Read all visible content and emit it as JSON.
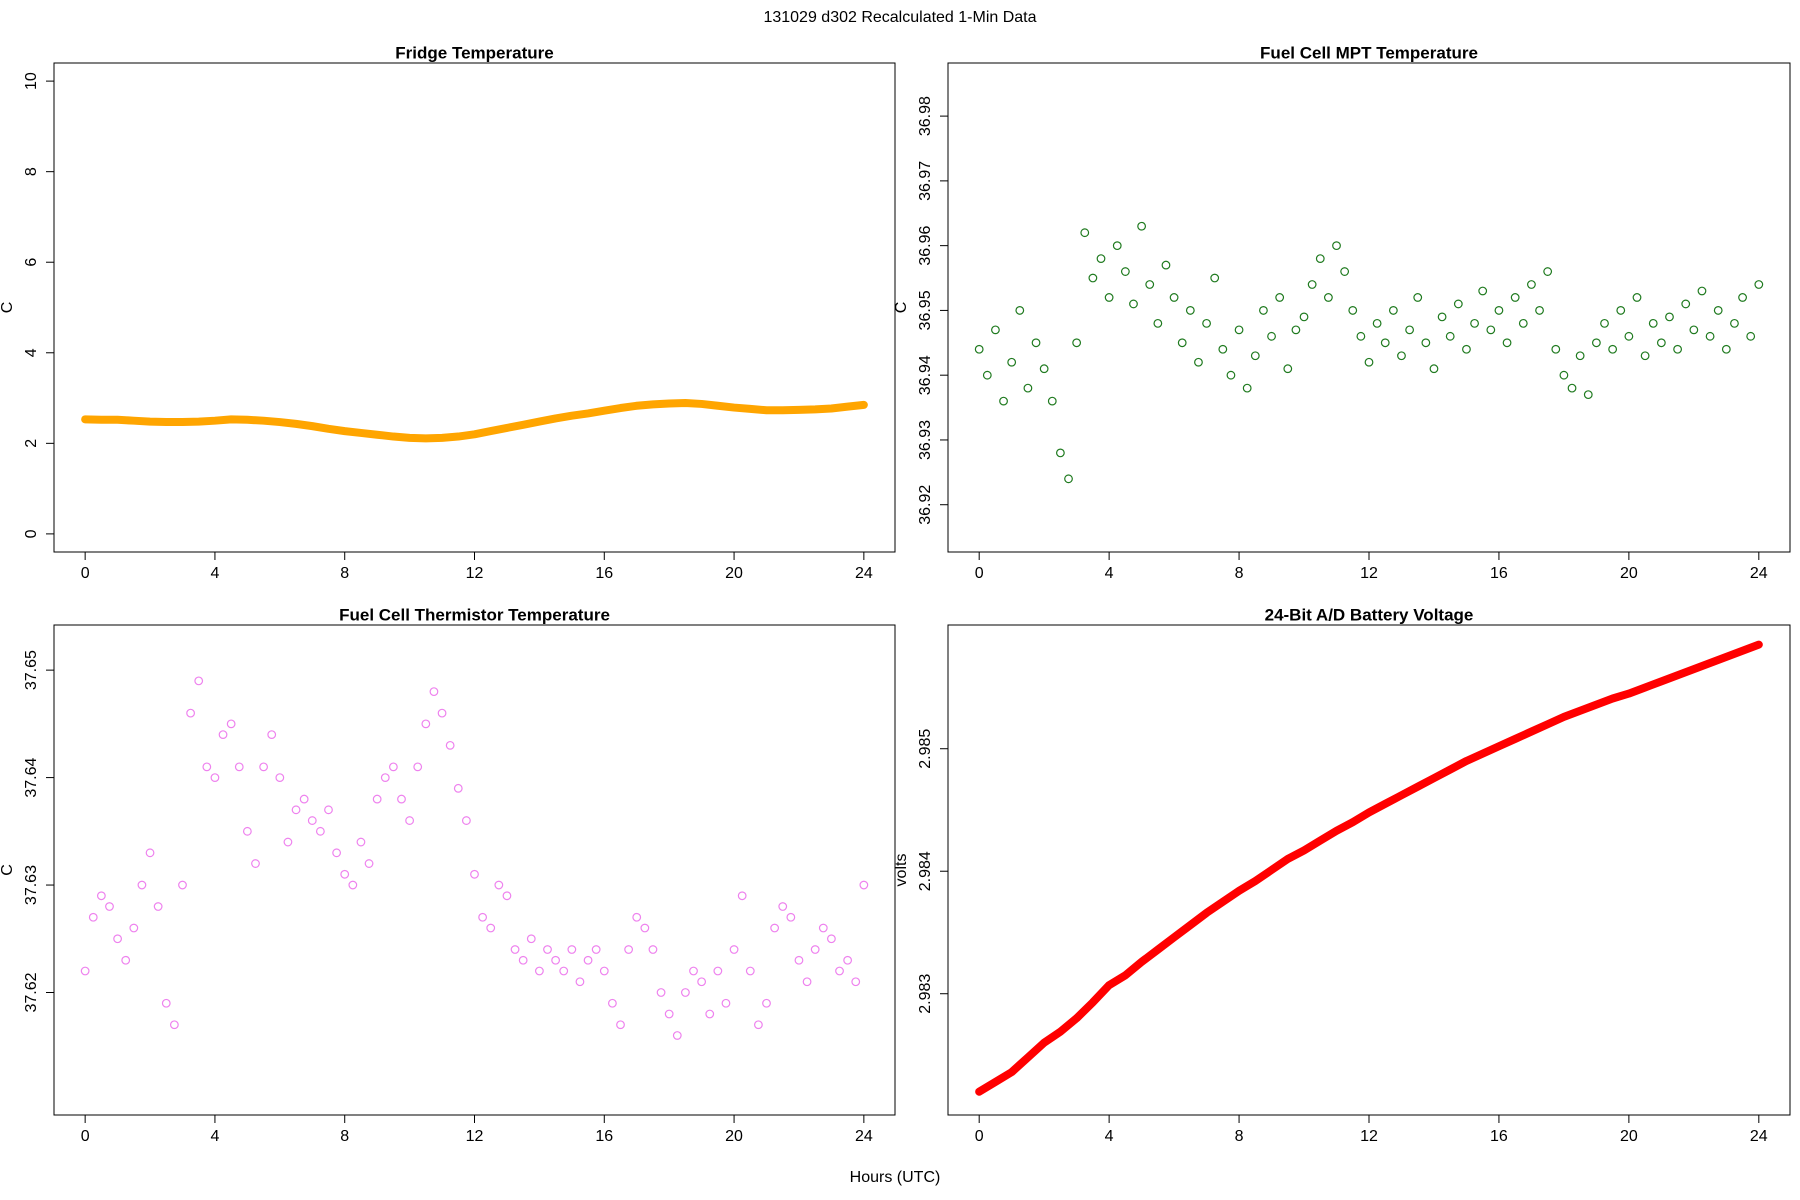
{
  "title": "131029   d302   Recalculated 1-Min Data",
  "xlabel": "Hours (UTC)",
  "chart_data": [
    {
      "type": "line",
      "title": "Fridge Temperature",
      "ylabel": "C",
      "color": "#FFA500",
      "x": [
        0,
        0.5,
        1,
        1.5,
        2,
        2.5,
        3,
        3.5,
        4,
        4.5,
        5,
        5.5,
        6,
        6.5,
        7,
        7.5,
        8,
        8.5,
        9,
        9.5,
        10,
        10.5,
        11,
        11.5,
        12,
        12.5,
        13,
        13.5,
        14,
        14.5,
        15,
        15.5,
        16,
        16.5,
        17,
        17.5,
        18,
        18.5,
        19,
        19.5,
        20,
        20.5,
        21,
        21.5,
        22,
        22.5,
        23,
        23.5,
        24
      ],
      "values": [
        2.53,
        2.52,
        2.52,
        2.5,
        2.48,
        2.47,
        2.47,
        2.48,
        2.5,
        2.53,
        2.52,
        2.5,
        2.47,
        2.43,
        2.38,
        2.32,
        2.27,
        2.23,
        2.19,
        2.15,
        2.12,
        2.11,
        2.12,
        2.15,
        2.2,
        2.27,
        2.34,
        2.41,
        2.48,
        2.55,
        2.61,
        2.66,
        2.72,
        2.78,
        2.83,
        2.86,
        2.88,
        2.89,
        2.87,
        2.83,
        2.79,
        2.76,
        2.73,
        2.73,
        2.74,
        2.75,
        2.77,
        2.81,
        2.85
      ],
      "xlim": [
        -0.96,
        24.96
      ],
      "xticks": [
        0,
        4,
        8,
        12,
        16,
        20,
        24
      ],
      "ylim": [
        -0.4,
        10.4
      ],
      "yticks": [
        0,
        2,
        4,
        6,
        8,
        10
      ]
    },
    {
      "type": "scatter",
      "title": "Fuel Cell MPT Temperature",
      "ylabel": "C",
      "color": "#1f7a1f",
      "x": [
        0,
        0.25,
        0.5,
        0.75,
        1,
        1.25,
        1.5,
        1.75,
        2,
        2.25,
        2.5,
        2.75,
        3,
        3.25,
        3.5,
        3.75,
        4,
        4.25,
        4.5,
        4.75,
        5,
        5.25,
        5.5,
        5.75,
        6,
        6.25,
        6.5,
        6.75,
        7,
        7.25,
        7.5,
        7.75,
        8,
        8.25,
        8.5,
        8.75,
        9,
        9.25,
        9.5,
        9.75,
        10,
        10.25,
        10.5,
        10.75,
        11,
        11.25,
        11.5,
        11.75,
        12,
        12.25,
        12.5,
        12.75,
        13,
        13.25,
        13.5,
        13.75,
        14,
        14.25,
        14.5,
        14.75,
        15,
        15.25,
        15.5,
        15.75,
        16,
        16.25,
        16.5,
        16.75,
        17,
        17.25,
        17.5,
        17.75,
        18,
        18.25,
        18.5,
        18.75,
        19,
        19.25,
        19.5,
        19.75,
        20,
        20.25,
        20.5,
        20.75,
        21,
        21.25,
        21.5,
        21.75,
        22,
        22.25,
        22.5,
        22.75,
        23,
        23.25,
        23.5,
        23.75,
        24
      ],
      "values": [
        36.944,
        36.94,
        36.947,
        36.936,
        36.942,
        36.95,
        36.938,
        36.945,
        36.941,
        36.936,
        36.928,
        36.924,
        36.945,
        36.962,
        36.955,
        36.958,
        36.952,
        36.96,
        36.956,
        36.951,
        36.963,
        36.954,
        36.948,
        36.957,
        36.952,
        36.945,
        36.95,
        36.942,
        36.948,
        36.955,
        36.944,
        36.94,
        36.947,
        36.938,
        36.943,
        36.95,
        36.946,
        36.952,
        36.941,
        36.947,
        36.949,
        36.954,
        36.958,
        36.952,
        36.96,
        36.956,
        36.95,
        36.946,
        36.942,
        36.948,
        36.945,
        36.95,
        36.943,
        36.947,
        36.952,
        36.945,
        36.941,
        36.949,
        36.946,
        36.951,
        36.944,
        36.948,
        36.953,
        36.947,
        36.95,
        36.945,
        36.952,
        36.948,
        36.954,
        36.95,
        36.956,
        36.944,
        36.94,
        36.938,
        36.943,
        36.937,
        36.945,
        36.948,
        36.944,
        36.95,
        36.946,
        36.952,
        36.943,
        36.948,
        36.945,
        36.949,
        36.944,
        36.951,
        36.947,
        36.953,
        36.946,
        36.95,
        36.944,
        36.948,
        36.952,
        36.946,
        36.954
      ],
      "xlim": [
        -0.96,
        24.96
      ],
      "xticks": [
        0,
        4,
        8,
        12,
        16,
        20,
        24
      ],
      "ylim": [
        36.9127,
        36.9882
      ],
      "yticks": [
        36.92,
        36.93,
        36.94,
        36.95,
        36.96,
        36.97,
        36.98
      ]
    },
    {
      "type": "scatter",
      "title": "Fuel Cell Thermistor Temperature",
      "ylabel": "C",
      "color": "#EE82EE",
      "x": [
        0,
        0.25,
        0.5,
        0.75,
        1,
        1.25,
        1.5,
        1.75,
        2,
        2.25,
        2.5,
        2.75,
        3,
        3.25,
        3.5,
        3.75,
        4,
        4.25,
        4.5,
        4.75,
        5,
        5.25,
        5.5,
        5.75,
        6,
        6.25,
        6.5,
        6.75,
        7,
        7.25,
        7.5,
        7.75,
        8,
        8.25,
        8.5,
        8.75,
        9,
        9.25,
        9.5,
        9.75,
        10,
        10.25,
        10.5,
        10.75,
        11,
        11.25,
        11.5,
        11.75,
        12,
        12.25,
        12.5,
        12.75,
        13,
        13.25,
        13.5,
        13.75,
        14,
        14.25,
        14.5,
        14.75,
        15,
        15.25,
        15.5,
        15.75,
        16,
        16.25,
        16.5,
        16.75,
        17,
        17.25,
        17.5,
        17.75,
        18,
        18.25,
        18.5,
        18.75,
        19,
        19.25,
        19.5,
        19.75,
        20,
        20.25,
        20.5,
        20.75,
        21,
        21.25,
        21.5,
        21.75,
        22,
        22.25,
        22.5,
        22.75,
        23,
        23.25,
        23.5,
        23.75,
        24
      ],
      "values": [
        37.622,
        37.627,
        37.629,
        37.628,
        37.625,
        37.623,
        37.626,
        37.63,
        37.633,
        37.628,
        37.619,
        37.617,
        37.63,
        37.646,
        37.649,
        37.641,
        37.64,
        37.644,
        37.645,
        37.641,
        37.635,
        37.632,
        37.641,
        37.644,
        37.64,
        37.634,
        37.637,
        37.638,
        37.636,
        37.635,
        37.637,
        37.633,
        37.631,
        37.63,
        37.634,
        37.632,
        37.638,
        37.64,
        37.641,
        37.638,
        37.636,
        37.641,
        37.645,
        37.648,
        37.646,
        37.643,
        37.639,
        37.636,
        37.631,
        37.627,
        37.626,
        37.63,
        37.629,
        37.624,
        37.623,
        37.625,
        37.622,
        37.624,
        37.623,
        37.622,
        37.624,
        37.621,
        37.623,
        37.624,
        37.622,
        37.619,
        37.617,
        37.624,
        37.627,
        37.626,
        37.624,
        37.62,
        37.618,
        37.616,
        37.62,
        37.622,
        37.621,
        37.618,
        37.622,
        37.619,
        37.624,
        37.629,
        37.622,
        37.617,
        37.619,
        37.626,
        37.628,
        37.627,
        37.623,
        37.621,
        37.624,
        37.626,
        37.625,
        37.622,
        37.623,
        37.621,
        37.63
      ],
      "xlim": [
        -0.96,
        24.96
      ],
      "xticks": [
        0,
        4,
        8,
        12,
        16,
        20,
        24
      ],
      "ylim": [
        37.6086,
        37.6542
      ],
      "yticks": [
        37.62,
        37.63,
        37.64,
        37.65
      ]
    },
    {
      "type": "line",
      "title": "24-Bit A/D Battery Voltage",
      "ylabel": "volts",
      "color": "#FF0000",
      "x": [
        0,
        0.5,
        1,
        1.5,
        2,
        2.5,
        3,
        3.5,
        4,
        4.5,
        5,
        5.5,
        6,
        6.5,
        7,
        7.5,
        8,
        8.5,
        9,
        9.5,
        10,
        10.5,
        11,
        11.5,
        12,
        12.5,
        13,
        13.5,
        14,
        14.5,
        15,
        15.5,
        16,
        16.5,
        17,
        17.5,
        18,
        18.5,
        19,
        19.5,
        20,
        20.5,
        21,
        21.5,
        22,
        22.5,
        23,
        23.5,
        24
      ],
      "values": [
        2.9822,
        2.98228,
        2.98236,
        2.98248,
        2.9826,
        2.98269,
        2.9828,
        2.98293,
        2.98307,
        2.98315,
        2.98326,
        2.98336,
        2.98346,
        2.98356,
        2.98366,
        2.98375,
        2.98384,
        2.98392,
        2.98401,
        2.9841,
        2.98417,
        2.98425,
        2.98433,
        2.9844,
        2.98448,
        2.98455,
        2.98462,
        2.98469,
        2.98476,
        2.98483,
        2.9849,
        2.98496,
        2.98502,
        2.98508,
        2.98514,
        2.9852,
        2.98526,
        2.98531,
        2.98536,
        2.98541,
        2.98545,
        2.9855,
        2.98555,
        2.9856,
        2.98565,
        2.9857,
        2.98575,
        2.9858,
        2.98585
      ],
      "xlim": [
        -0.96,
        24.96
      ],
      "xticks": [
        0,
        4,
        8,
        12,
        16,
        20,
        24
      ],
      "ylim": [
        2.98201,
        2.98601
      ],
      "yticks": [
        2.983,
        2.984,
        2.985
      ]
    }
  ]
}
